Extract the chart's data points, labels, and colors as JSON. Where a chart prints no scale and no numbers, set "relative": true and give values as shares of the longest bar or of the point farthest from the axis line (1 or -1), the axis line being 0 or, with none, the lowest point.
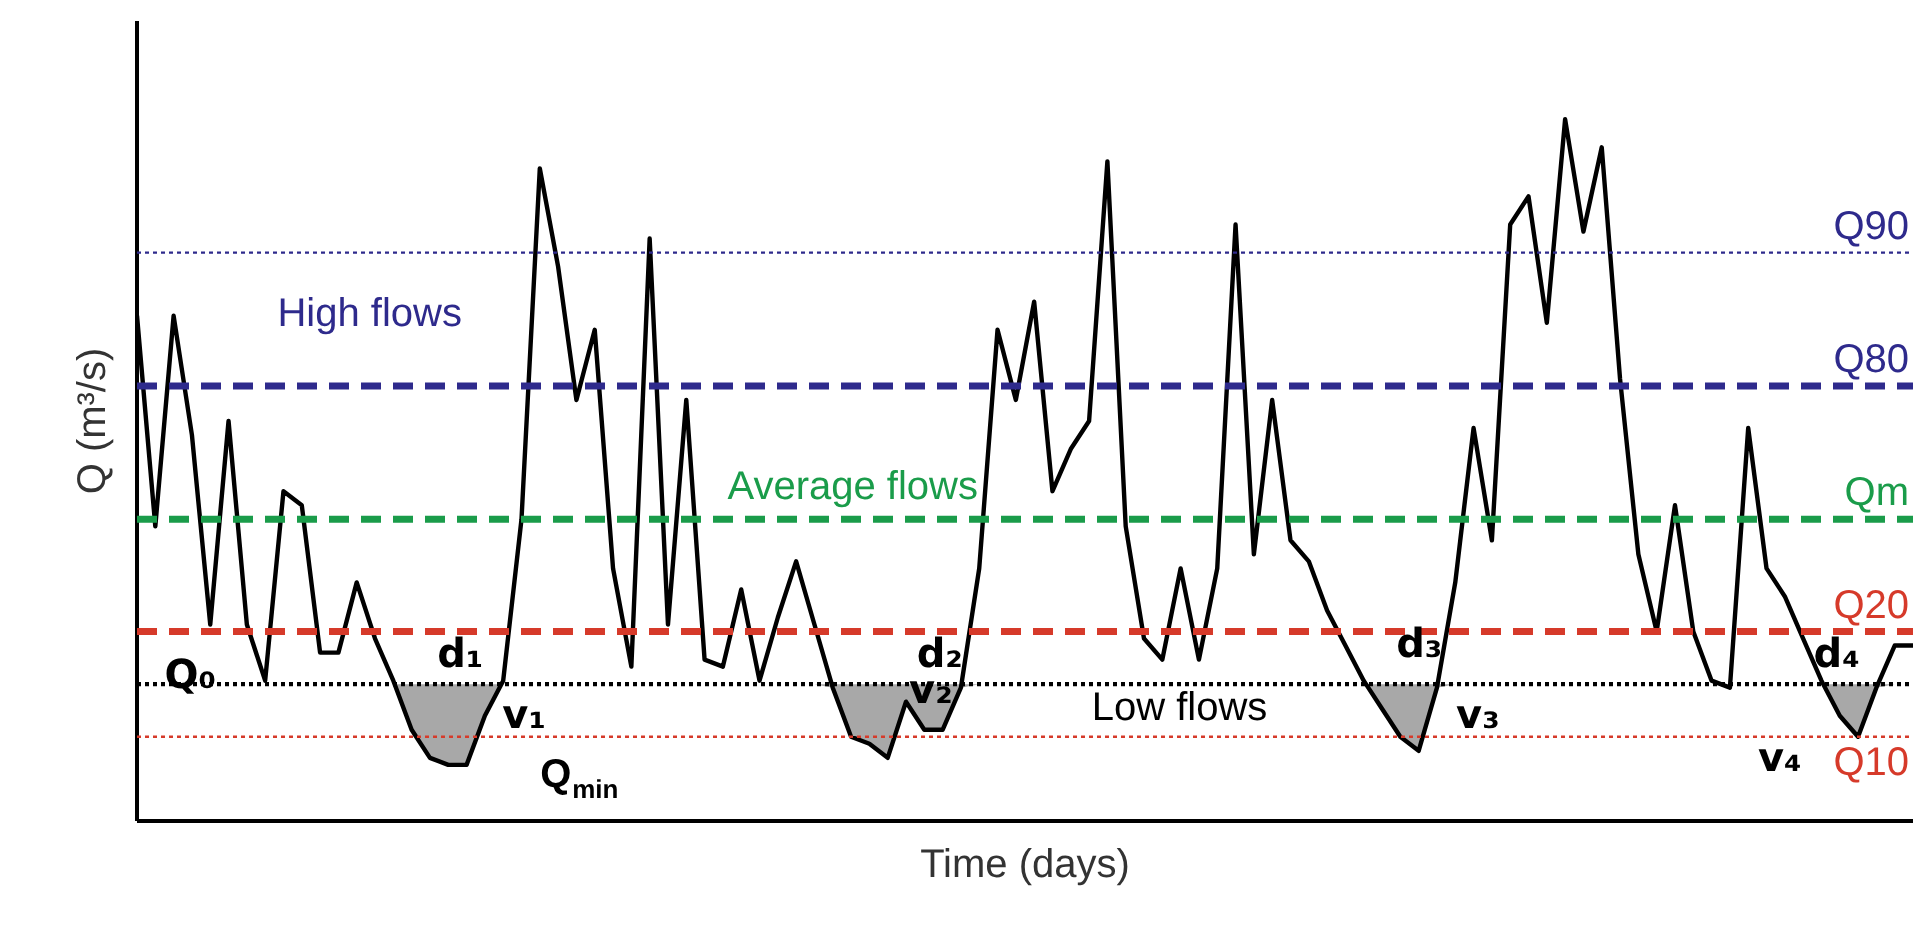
{
  "chart_data": {
    "type": "line",
    "relative": true,
    "xlabel": "Time (days)",
    "ylabel": "Q (m³/s)",
    "tick_labels": false,
    "grid": false,
    "categories": [
      null,
      null,
      null,
      null,
      null,
      null,
      null,
      null,
      null,
      null,
      null,
      null,
      null,
      null,
      null,
      null,
      null,
      null,
      null,
      null,
      null,
      null,
      null,
      null,
      null,
      null,
      null,
      null,
      null,
      null,
      null,
      null,
      null,
      null,
      null,
      null,
      null,
      null,
      null,
      null,
      null,
      null,
      null,
      null,
      null,
      null,
      null,
      null,
      null,
      null,
      null,
      null,
      null,
      null,
      null,
      null,
      null,
      null,
      null,
      null,
      null,
      null,
      null,
      null,
      null,
      null,
      null,
      null,
      null,
      null,
      null,
      null,
      null,
      null,
      null,
      null,
      null,
      null,
      null,
      null,
      null,
      null,
      null,
      null,
      null,
      null,
      null,
      null,
      null,
      null,
      null,
      null,
      null,
      null,
      null,
      null,
      null,
      null
    ],
    "series": [
      {
        "color": "#000000",
        "line_style": "solid",
        "marker": "none",
        "lower": [
          null,
          null,
          null,
          null,
          null,
          null,
          null,
          null,
          null,
          null,
          null,
          null,
          null,
          null,
          0.195,
          0.13,
          0.09,
          0.08,
          0.08,
          0.15,
          0.195,
          null,
          null,
          null,
          null,
          null,
          null,
          null,
          null,
          null,
          null,
          null,
          null,
          null,
          null,
          null,
          null,
          0.195,
          0.19,
          0.12,
          0.11,
          0.09,
          0.17,
          0.13,
          0.13,
          0.19,
          0.195,
          null,
          null,
          null,
          null,
          null,
          null,
          null,
          null,
          null,
          null,
          null,
          null,
          null,
          null,
          null,
          null,
          null,
          null,
          null,
          null,
          0.195,
          0.16,
          0.12,
          0.1,
          0.19,
          0.195,
          null,
          null,
          null,
          null,
          null,
          null,
          null,
          null,
          null,
          null,
          null,
          null,
          null,
          null,
          null,
          null,
          null,
          null,
          null,
          0.195,
          0.15,
          0.12,
          0.19,
          0.195,
          null
        ],
        "upper": [
          null,
          null,
          null,
          null,
          null,
          null,
          null,
          null,
          null,
          null,
          null,
          null,
          null,
          null,
          0.195,
          0.195,
          0.195,
          0.195,
          0.195,
          0.195,
          0.195,
          null,
          null,
          null,
          null,
          null,
          null,
          null,
          null,
          null,
          null,
          null,
          null,
          null,
          null,
          null,
          null,
          0.195,
          0.195,
          0.195,
          0.195,
          0.195,
          0.195,
          0.195,
          0.195,
          0.195,
          0.195,
          null,
          null,
          null,
          null,
          null,
          null,
          null,
          null,
          null,
          null,
          null,
          null,
          null,
          null,
          null,
          null,
          null,
          null,
          null,
          null,
          0.195,
          0.195,
          0.195,
          0.195,
          0.195,
          0.195,
          null,
          null,
          null,
          null,
          null,
          null,
          null,
          null,
          null,
          null,
          null,
          null,
          null,
          null,
          null,
          null,
          null,
          null,
          null,
          0.195,
          0.195,
          0.195,
          0.195,
          0.195,
          null
        ],
        "values": [
          0.72,
          0.42,
          0.72,
          0.55,
          0.28,
          0.57,
          0.28,
          0.2,
          0.47,
          0.45,
          0.24,
          0.24,
          0.34,
          0.26,
          0.2,
          0.13,
          0.09,
          0.08,
          0.08,
          0.15,
          0.2,
          0.43,
          0.93,
          0.79,
          0.6,
          0.7,
          0.36,
          0.22,
          0.83,
          0.28,
          0.6,
          0.23,
          0.22,
          0.33,
          0.2,
          0.29,
          0.37,
          0.28,
          0.19,
          0.12,
          0.11,
          0.09,
          0.17,
          0.13,
          0.13,
          0.19,
          0.36,
          0.7,
          0.6,
          0.74,
          0.47,
          0.53,
          0.57,
          0.94,
          0.42,
          0.26,
          0.23,
          0.36,
          0.23,
          0.36,
          0.85,
          0.38,
          0.6,
          0.4,
          0.37,
          0.3,
          0.25,
          0.2,
          0.16,
          0.12,
          0.1,
          0.19,
          0.34,
          0.56,
          0.4,
          0.85,
          0.89,
          0.71,
          1.0,
          0.84,
          0.96,
          0.63,
          0.38,
          0.27,
          0.45,
          0.27,
          0.2,
          0.19,
          0.56,
          0.36,
          0.32,
          0.26,
          0.2,
          0.15,
          0.12,
          0.19,
          0.25,
          0.25
        ]
      }
    ],
    "ref_lines": [
      {
        "axis": "y",
        "value": 0.81,
        "label": "Q90",
        "color": "#2e2a8c",
        "line_style": "dotted"
      },
      {
        "axis": "y",
        "value": 0.62,
        "label": "Q80",
        "color": "#2e2a8c",
        "line_style": "dashed"
      },
      {
        "axis": "y",
        "value": 0.43,
        "label": "Qm",
        "color": "#1a9c4a",
        "line_style": "dashed"
      },
      {
        "axis": "y",
        "value": 0.27,
        "label": "Q20",
        "color": "#d63a2a",
        "line_style": "dashed"
      },
      {
        "axis": "y",
        "value": 0.195,
        "label": null,
        "color": "#000000",
        "line_style": "dotted"
      },
      {
        "axis": "y",
        "value": 0.12,
        "label": "Q10",
        "color": "#d63a2a",
        "line_style": "dotted"
      }
    ],
    "annotations": [
      "High flows",
      "Average flows",
      "Low flows",
      "Q₀",
      "Q$_{min}$",
      "d₁",
      "v₁",
      "d₂",
      "v₂",
      "d₃",
      "v₃",
      "d₄",
      "v₄"
    ]
  }
}
